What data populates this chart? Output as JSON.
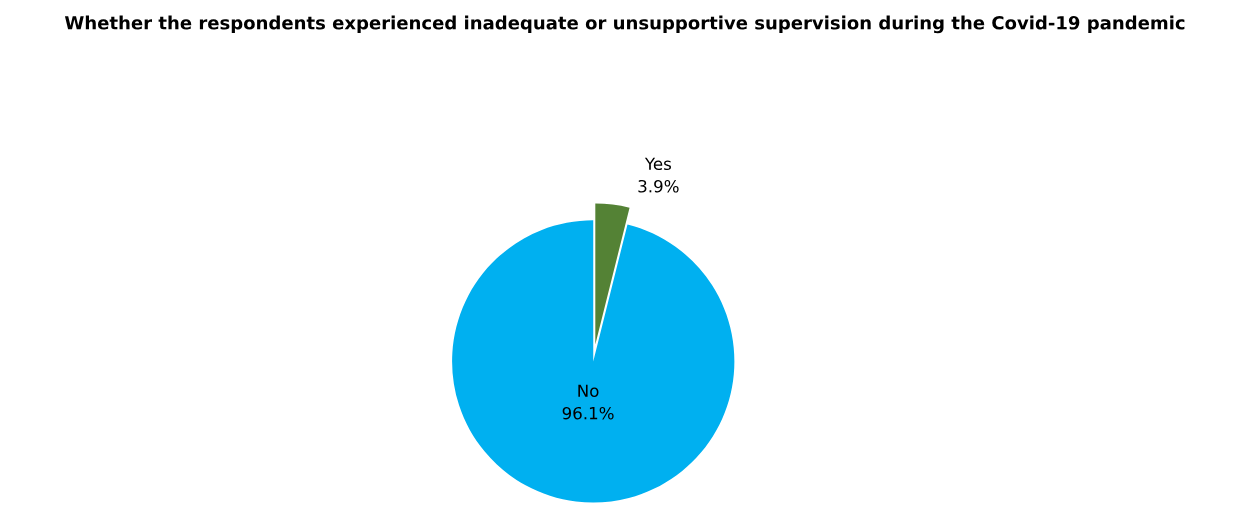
{
  "chart_data": {
    "type": "pie",
    "title": "Whether the respondents experienced inadequate or unsupportive supervision during the Covid-19 pandemic",
    "categories": [
      "Yes",
      "No"
    ],
    "values": [
      3.9,
      96.1
    ],
    "colors": [
      "#548235",
      "#00b0f0"
    ],
    "value_labels": [
      "3.9%",
      "96.1%"
    ]
  }
}
